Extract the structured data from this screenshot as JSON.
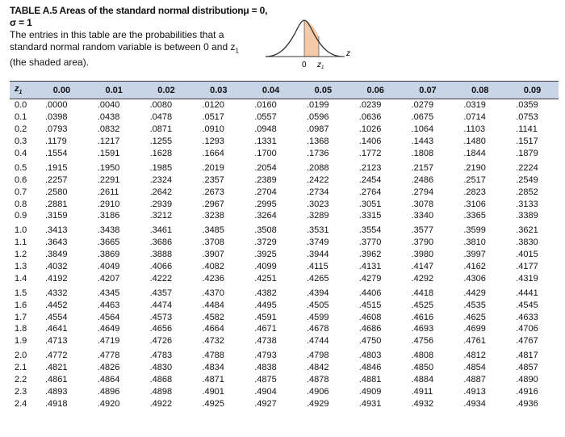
{
  "title": "TABLE A.5 Areas of the standard normal distribution",
  "title_params": "μ = 0, σ = 1",
  "description_lines": [
    "The entries in this table are the probabilities that a",
    "standard normal random variable is between 0 and z",
    "(the shaded area)."
  ],
  "description_sub": "1",
  "figure": {
    "zero_label": "0",
    "z1_label": "z",
    "z1_sub": "1",
    "axis_label": "z",
    "shade_color": "#f3c9a7",
    "curve_color": "#333333"
  },
  "header_color": "#c8d5e6",
  "columns": [
    "z1",
    "0.00",
    "0.01",
    "0.02",
    "0.03",
    "0.04",
    "0.05",
    "0.06",
    "0.07",
    "0.08",
    "0.09"
  ],
  "rows": [
    {
      "z": "0.0",
      "values": [
        ".0000",
        ".0040",
        ".0080",
        ".0120",
        ".0160",
        ".0199",
        ".0239",
        ".0279",
        ".0319",
        ".0359"
      ]
    },
    {
      "z": "0.1",
      "values": [
        ".0398",
        ".0438",
        ".0478",
        ".0517",
        ".0557",
        ".0596",
        ".0636",
        ".0675",
        ".0714",
        ".0753"
      ]
    },
    {
      "z": "0.2",
      "values": [
        ".0793",
        ".0832",
        ".0871",
        ".0910",
        ".0948",
        ".0987",
        ".1026",
        ".1064",
        ".1103",
        ".1141"
      ]
    },
    {
      "z": "0.3",
      "values": [
        ".1179",
        ".1217",
        ".1255",
        ".1293",
        ".1331",
        ".1368",
        ".1406",
        ".1443",
        ".1480",
        ".1517"
      ]
    },
    {
      "z": "0.4",
      "values": [
        ".1554",
        ".1591",
        ".1628",
        ".1664",
        ".1700",
        ".1736",
        ".1772",
        ".1808",
        ".1844",
        ".1879"
      ]
    },
    {
      "z": "0.5",
      "values": [
        ".1915",
        ".1950",
        ".1985",
        ".2019",
        ".2054",
        ".2088",
        ".2123",
        ".2157",
        ".2190",
        ".2224"
      ]
    },
    {
      "z": "0.6",
      "values": [
        ".2257",
        ".2291",
        ".2324",
        ".2357",
        ".2389",
        ".2422",
        ".2454",
        ".2486",
        ".2517",
        ".2549"
      ]
    },
    {
      "z": "0.7",
      "values": [
        ".2580",
        ".2611",
        ".2642",
        ".2673",
        ".2704",
        ".2734",
        ".2764",
        ".2794",
        ".2823",
        ".2852"
      ]
    },
    {
      "z": "0.8",
      "values": [
        ".2881",
        ".2910",
        ".2939",
        ".2967",
        ".2995",
        ".3023",
        ".3051",
        ".3078",
        ".3106",
        ".3133"
      ]
    },
    {
      "z": "0.9",
      "values": [
        ".3159",
        ".3186",
        ".3212",
        ".3238",
        ".3264",
        ".3289",
        ".3315",
        ".3340",
        ".3365",
        ".3389"
      ]
    },
    {
      "z": "1.0",
      "values": [
        ".3413",
        ".3438",
        ".3461",
        ".3485",
        ".3508",
        ".3531",
        ".3554",
        ".3577",
        ".3599",
        ".3621"
      ]
    },
    {
      "z": "1.1",
      "values": [
        ".3643",
        ".3665",
        ".3686",
        ".3708",
        ".3729",
        ".3749",
        ".3770",
        ".3790",
        ".3810",
        ".3830"
      ]
    },
    {
      "z": "1.2",
      "values": [
        ".3849",
        ".3869",
        ".3888",
        ".3907",
        ".3925",
        ".3944",
        ".3962",
        ".3980",
        ".3997",
        ".4015"
      ]
    },
    {
      "z": "1.3",
      "values": [
        ".4032",
        ".4049",
        ".4066",
        ".4082",
        ".4099",
        ".4115",
        ".4131",
        ".4147",
        ".4162",
        ".4177"
      ]
    },
    {
      "z": "1.4",
      "values": [
        ".4192",
        ".4207",
        ".4222",
        ".4236",
        ".4251",
        ".4265",
        ".4279",
        ".4292",
        ".4306",
        ".4319"
      ]
    },
    {
      "z": "1.5",
      "values": [
        ".4332",
        ".4345",
        ".4357",
        ".4370",
        ".4382",
        ".4394",
        ".4406",
        ".4418",
        ".4429",
        ".4441"
      ]
    },
    {
      "z": "1.6",
      "values": [
        ".4452",
        ".4463",
        ".4474",
        ".4484",
        ".4495",
        ".4505",
        ".4515",
        ".4525",
        ".4535",
        ".4545"
      ]
    },
    {
      "z": "1.7",
      "values": [
        ".4554",
        ".4564",
        ".4573",
        ".4582",
        ".4591",
        ".4599",
        ".4608",
        ".4616",
        ".4625",
        ".4633"
      ]
    },
    {
      "z": "1.8",
      "values": [
        ".4641",
        ".4649",
        ".4656",
        ".4664",
        ".4671",
        ".4678",
        ".4686",
        ".4693",
        ".4699",
        ".4706"
      ]
    },
    {
      "z": "1.9",
      "values": [
        ".4713",
        ".4719",
        ".4726",
        ".4732",
        ".4738",
        ".4744",
        ".4750",
        ".4756",
        ".4761",
        ".4767"
      ]
    },
    {
      "z": "2.0",
      "values": [
        ".4772",
        ".4778",
        ".4783",
        ".4788",
        ".4793",
        ".4798",
        ".4803",
        ".4808",
        ".4812",
        ".4817"
      ]
    },
    {
      "z": "2.1",
      "values": [
        ".4821",
        ".4826",
        ".4830",
        ".4834",
        ".4838",
        ".4842",
        ".4846",
        ".4850",
        ".4854",
        ".4857"
      ]
    },
    {
      "z": "2.2",
      "values": [
        ".4861",
        ".4864",
        ".4868",
        ".4871",
        ".4875",
        ".4878",
        ".4881",
        ".4884",
        ".4887",
        ".4890"
      ]
    },
    {
      "z": "2.3",
      "values": [
        ".4893",
        ".4896",
        ".4898",
        ".4901",
        ".4904",
        ".4906",
        ".4909",
        ".4911",
        ".4913",
        ".4916"
      ]
    },
    {
      "z": "2.4",
      "values": [
        ".4918",
        ".4920",
        ".4922",
        ".4925",
        ".4927",
        ".4929",
        ".4931",
        ".4932",
        ".4934",
        ".4936"
      ]
    }
  ]
}
